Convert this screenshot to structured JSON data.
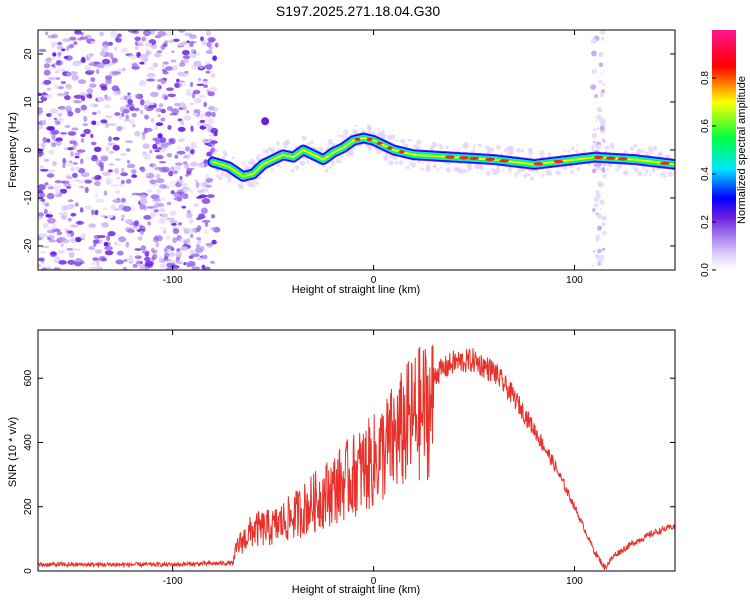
{
  "title": "S197.2025.271.18.04.G30",
  "chart_data": [
    {
      "type": "heatmap",
      "xlabel": "Height of straight line (km)",
      "ylabel": "Frequency (Hz)",
      "xlim": [
        -167,
        150
      ],
      "ylim": [
        -25,
        25
      ],
      "xticks": [
        -100,
        0,
        100
      ],
      "yticks": [
        -20,
        -10,
        0,
        10,
        20
      ],
      "colorbar": {
        "label": "Normalized spectral amplitude",
        "range": [
          0,
          1
        ],
        "ticks": [
          "0.0",
          "0.2",
          "0.4",
          "0.6",
          "0.8"
        ],
        "colors": [
          "#ffffff",
          "#e3d4fb",
          "#a77df0",
          "#6a1fe0",
          "#0000ff",
          "#00e5ff",
          "#00ff40",
          "#ffff00",
          "#ff0000",
          "#ff1493"
        ]
      },
      "ridge": {
        "description_points_x": [
          -80,
          -72,
          -65,
          -60,
          -55,
          -50,
          -45,
          -40,
          -35,
          -30,
          -25,
          -20,
          -15,
          -10,
          -5,
          0,
          10,
          20,
          40,
          60,
          80,
          90,
          100,
          110,
          130,
          150
        ],
        "description_points_y": [
          -2.5,
          -3.5,
          -5.5,
          -5,
          -3,
          -2,
          -1,
          -1.5,
          0,
          -1,
          -2,
          -0.5,
          0.5,
          2,
          2.5,
          2,
          0,
          -1,
          -1.5,
          -2,
          -3,
          -2.5,
          -2,
          -1.5,
          -2,
          -3
        ]
      },
      "noise_region_x": [
        -167,
        -80
      ],
      "vertical_stripe_x": 112
    },
    {
      "type": "line",
      "xlabel": "Height of straight line (km)",
      "ylabel": "SNR (10 * v/v)",
      "xlim": [
        -167,
        150
      ],
      "ylim": [
        0,
        750
      ],
      "xticks": [
        -100,
        0,
        100
      ],
      "yticks": [
        0,
        200,
        400,
        600
      ],
      "series": [
        {
          "name": "SNR",
          "color": "#e8312a",
          "envelope_x": [
            -167,
            -100,
            -70,
            -68,
            -60,
            -50,
            -40,
            -30,
            -20,
            -10,
            0,
            10,
            20,
            30,
            40,
            50,
            60,
            70,
            80,
            90,
            100,
            110,
            115,
            120,
            130,
            140,
            150
          ],
          "envelope_y": [
            20,
            20,
            25,
            90,
            150,
            160,
            200,
            250,
            300,
            350,
            400,
            480,
            560,
            610,
            650,
            655,
            620,
            540,
            440,
            330,
            200,
            60,
            10,
            50,
            90,
            120,
            140
          ]
        }
      ]
    }
  ]
}
